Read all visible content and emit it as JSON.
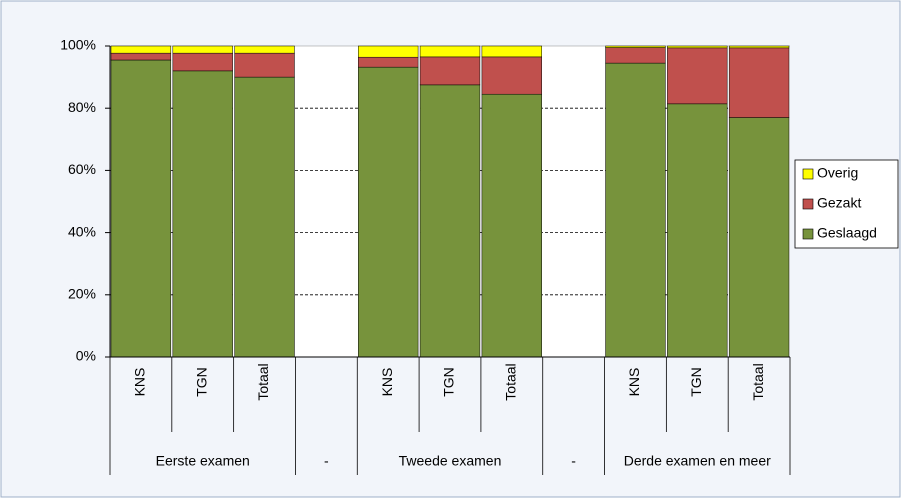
{
  "chart_data": {
    "type": "stacked_bar",
    "categories": [
      "KNS",
      "TGN",
      "Totaal",
      null,
      "KNS",
      "TGN",
      "Totaal",
      null,
      "KNS",
      "TGN",
      "Totaal"
    ],
    "groups": [
      "Eerste examen",
      "-",
      "Tweede examen",
      "-",
      "Derde examen en meer"
    ],
    "series": [
      {
        "name": "Geslaagd",
        "color": "#77933c",
        "values": [
          95.5,
          92,
          90,
          null,
          93.2,
          87.5,
          84.5,
          null,
          94.5,
          81.4,
          77
        ]
      },
      {
        "name": "Gezakt",
        "color": "#c0504d",
        "values": [
          2.2,
          5.7,
          7.7,
          null,
          3.2,
          9,
          12,
          null,
          5,
          18,
          22.4
        ]
      },
      {
        "name": "Overig",
        "color": "#ffff00",
        "values": [
          2.3,
          2.3,
          2.3,
          null,
          3.6,
          3.5,
          3.5,
          null,
          0.5,
          0.6,
          0.6
        ]
      }
    ],
    "ylim": [
      0,
      100
    ],
    "yticks": [
      {
        "value": 0,
        "label": "0%"
      },
      {
        "value": 20,
        "label": "20%"
      },
      {
        "value": 40,
        "label": "40%"
      },
      {
        "value": 60,
        "label": "60%"
      },
      {
        "value": 80,
        "label": "80%"
      },
      {
        "value": 100,
        "label": "100%"
      }
    ],
    "grid": true
  }
}
